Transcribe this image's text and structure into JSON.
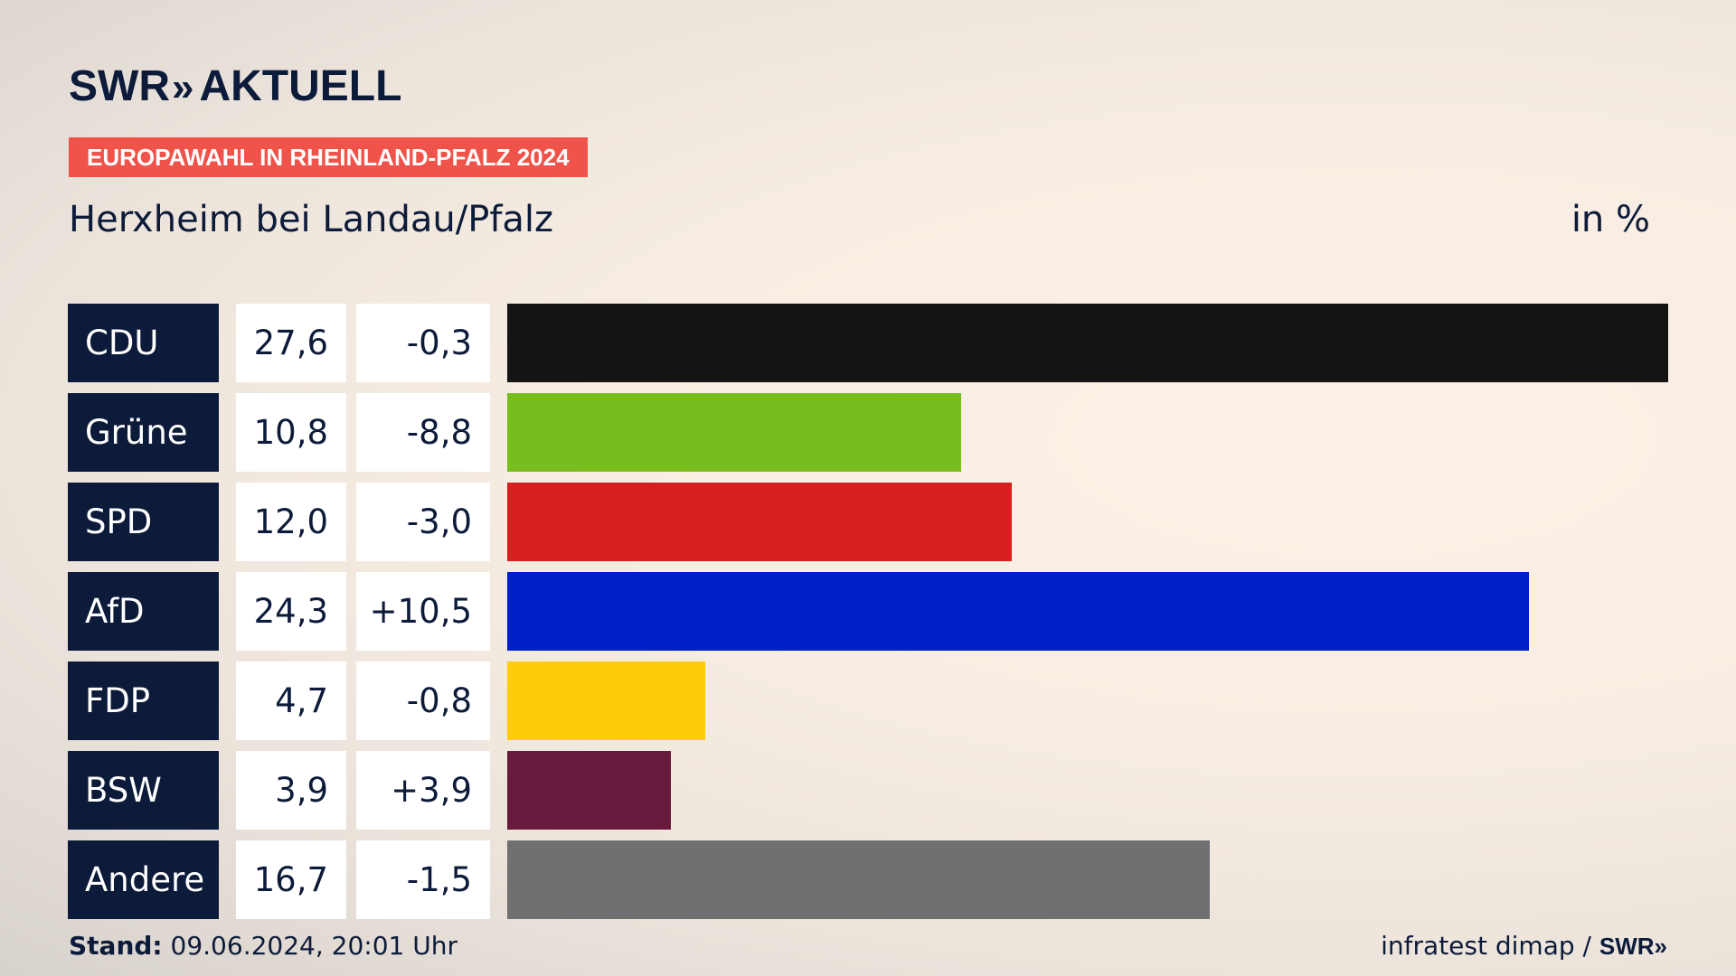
{
  "brand": {
    "logo_name": "SWR",
    "logo_arrows": "»",
    "logo_suffix": "AKTUELL"
  },
  "badge": "EUROPAWAHL IN RHEINLAND-PFALZ 2024",
  "subtitle": "Herxheim bei Landau/Pfalz",
  "unit": "in %",
  "colors": {
    "CDU": "#141414",
    "Grüne": "#78bd1e",
    "SPD": "#d61f1f",
    "AfD": "#001fc8",
    "FDP": "#ffcc0a",
    "BSW": "#681a3c",
    "Andere": "#707072",
    "badge": "#f0534a",
    "navy": "#0d1b3a"
  },
  "chart_data": {
    "type": "bar",
    "orientation": "horizontal",
    "categories": [
      "CDU",
      "Grüne",
      "SPD",
      "AfD",
      "FDP",
      "BSW",
      "Andere"
    ],
    "values": [
      27.6,
      10.8,
      12.0,
      24.3,
      4.7,
      3.9,
      16.7
    ],
    "value_labels": [
      "27,6",
      "10,8",
      "12,0",
      "24,3",
      "4,7",
      "3,9",
      "16,7"
    ],
    "changes": [
      -0.3,
      -8.8,
      -3.0,
      10.5,
      -0.8,
      3.9,
      -1.5
    ],
    "change_labels": [
      "-0,3",
      "-8,8",
      "-3,0",
      "+10,5",
      "-0,8",
      "+3,9",
      "-1,5"
    ],
    "xlim": [
      0,
      27.6
    ]
  },
  "footer": {
    "stand_label": "Stand:",
    "stand_value": "09.06.2024, 20:01 Uhr",
    "source": "infratest dimap /",
    "source_brand": "SWR»"
  }
}
